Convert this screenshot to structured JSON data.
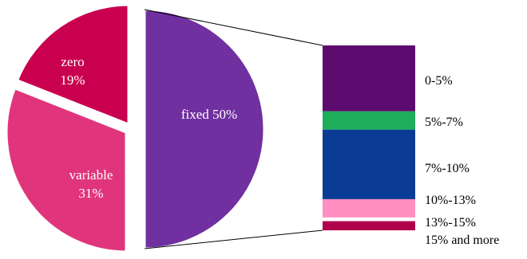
{
  "chart_data": [
    {
      "type": "pie",
      "slices": [
        {
          "label": "fixed",
          "value": 50,
          "display": "fixed 50%",
          "color": "#7030a0"
        },
        {
          "label": "zero",
          "value": 19,
          "display": "19%",
          "color": "#c9004f"
        },
        {
          "label": "variable",
          "value": 31,
          "display": "31%",
          "color": "#e0357c"
        }
      ],
      "exploded_slice": "fixed",
      "label_color": "#ffffff"
    },
    {
      "type": "bar",
      "stacked": true,
      "series": [
        {
          "name": "0-5%",
          "value": 0.36,
          "color": "#5c0a6e"
        },
        {
          "name": "5%-7%",
          "value": 0.1,
          "color": "#1fad5a"
        },
        {
          "name": "7%-10%",
          "value": 0.38,
          "color": "#0a3c96"
        },
        {
          "name": "10%-13%",
          "value": 0.1,
          "color": "#ff8fc0"
        },
        {
          "name": "13%-15%",
          "value": 0.02,
          "color": "#ffffff"
        },
        {
          "name": "15% and more",
          "value": 0.05,
          "color": "#b0004c"
        }
      ],
      "labels": [
        "0-5%",
        "5%-7%",
        "7%-10%",
        "10%-13%",
        "13%-15%",
        "15% and more"
      ],
      "label_color": "#000000"
    }
  ]
}
